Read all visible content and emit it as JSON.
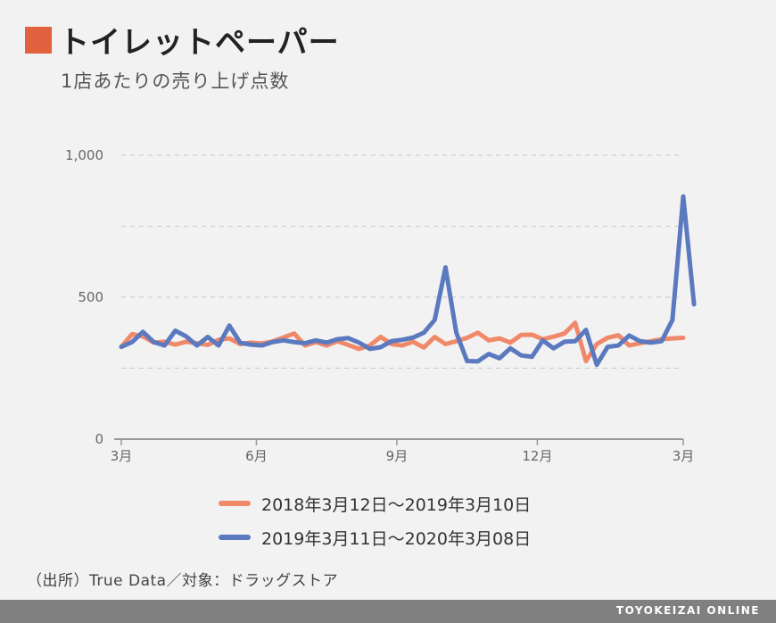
{
  "header": {
    "title": "トイレットペーパー",
    "subtitle": "1店あたりの売り上げ点数",
    "accent_color": "#e2623f"
  },
  "chart_data": {
    "type": "line",
    "title": "トイレットペーパー",
    "subtitle": "1店あたりの売り上げ点数",
    "ylim": [
      0,
      1000
    ],
    "y_ticks": [
      {
        "value": 0,
        "label": "0"
      },
      {
        "value": 500,
        "label": "500"
      },
      {
        "value": 1000,
        "label": "1,000"
      }
    ],
    "gridlines": [
      250,
      500,
      750,
      1000
    ],
    "x_range": [
      0,
      52
    ],
    "x_ticks": [
      {
        "week": 0,
        "label": "3月"
      },
      {
        "week": 12.5,
        "label": "6月"
      },
      {
        "week": 25.5,
        "label": "9月"
      },
      {
        "week": 38.5,
        "label": "12月"
      },
      {
        "week": 52,
        "label": "3月"
      }
    ],
    "grid": true,
    "legend_position": "bottom",
    "series": [
      {
        "name": "2018年3月12日～2019年3月10日",
        "color": "#f0896a",
        "values": [
          325,
          370,
          362,
          340,
          343,
          333,
          343,
          338,
          332,
          350,
          355,
          335,
          340,
          337,
          344,
          358,
          372,
          330,
          342,
          330,
          345,
          332,
          318,
          330,
          360,
          335,
          330,
          343,
          323,
          360,
          335,
          345,
          357,
          375,
          348,
          355,
          340,
          367,
          368,
          352,
          361,
          372,
          410,
          275,
          335,
          357,
          366,
          330,
          338,
          345,
          352,
          355,
          357
        ]
      },
      {
        "name": "2019年3月11日～2020年3月08日",
        "color": "#5b79bf",
        "values": [
          325,
          342,
          378,
          342,
          330,
          382,
          362,
          330,
          360,
          330,
          400,
          340,
          333,
          330,
          342,
          348,
          342,
          338,
          348,
          340,
          352,
          356,
          340,
          318,
          324,
          345,
          350,
          358,
          375,
          420,
          605,
          375,
          275,
          274,
          300,
          285,
          320,
          295,
          290,
          348,
          320,
          343,
          345,
          385,
          262,
          325,
          330,
          365,
          345,
          340,
          345,
          420,
          855,
          475
        ]
      }
    ],
    "source": "（出所）True Data／対象：ドラッグストア"
  },
  "footer": {
    "source": "（出所）True Data／対象：ドラッグストア",
    "brand": "TOYOKEIZAI ONLINE",
    "bar_color": "#808080"
  }
}
